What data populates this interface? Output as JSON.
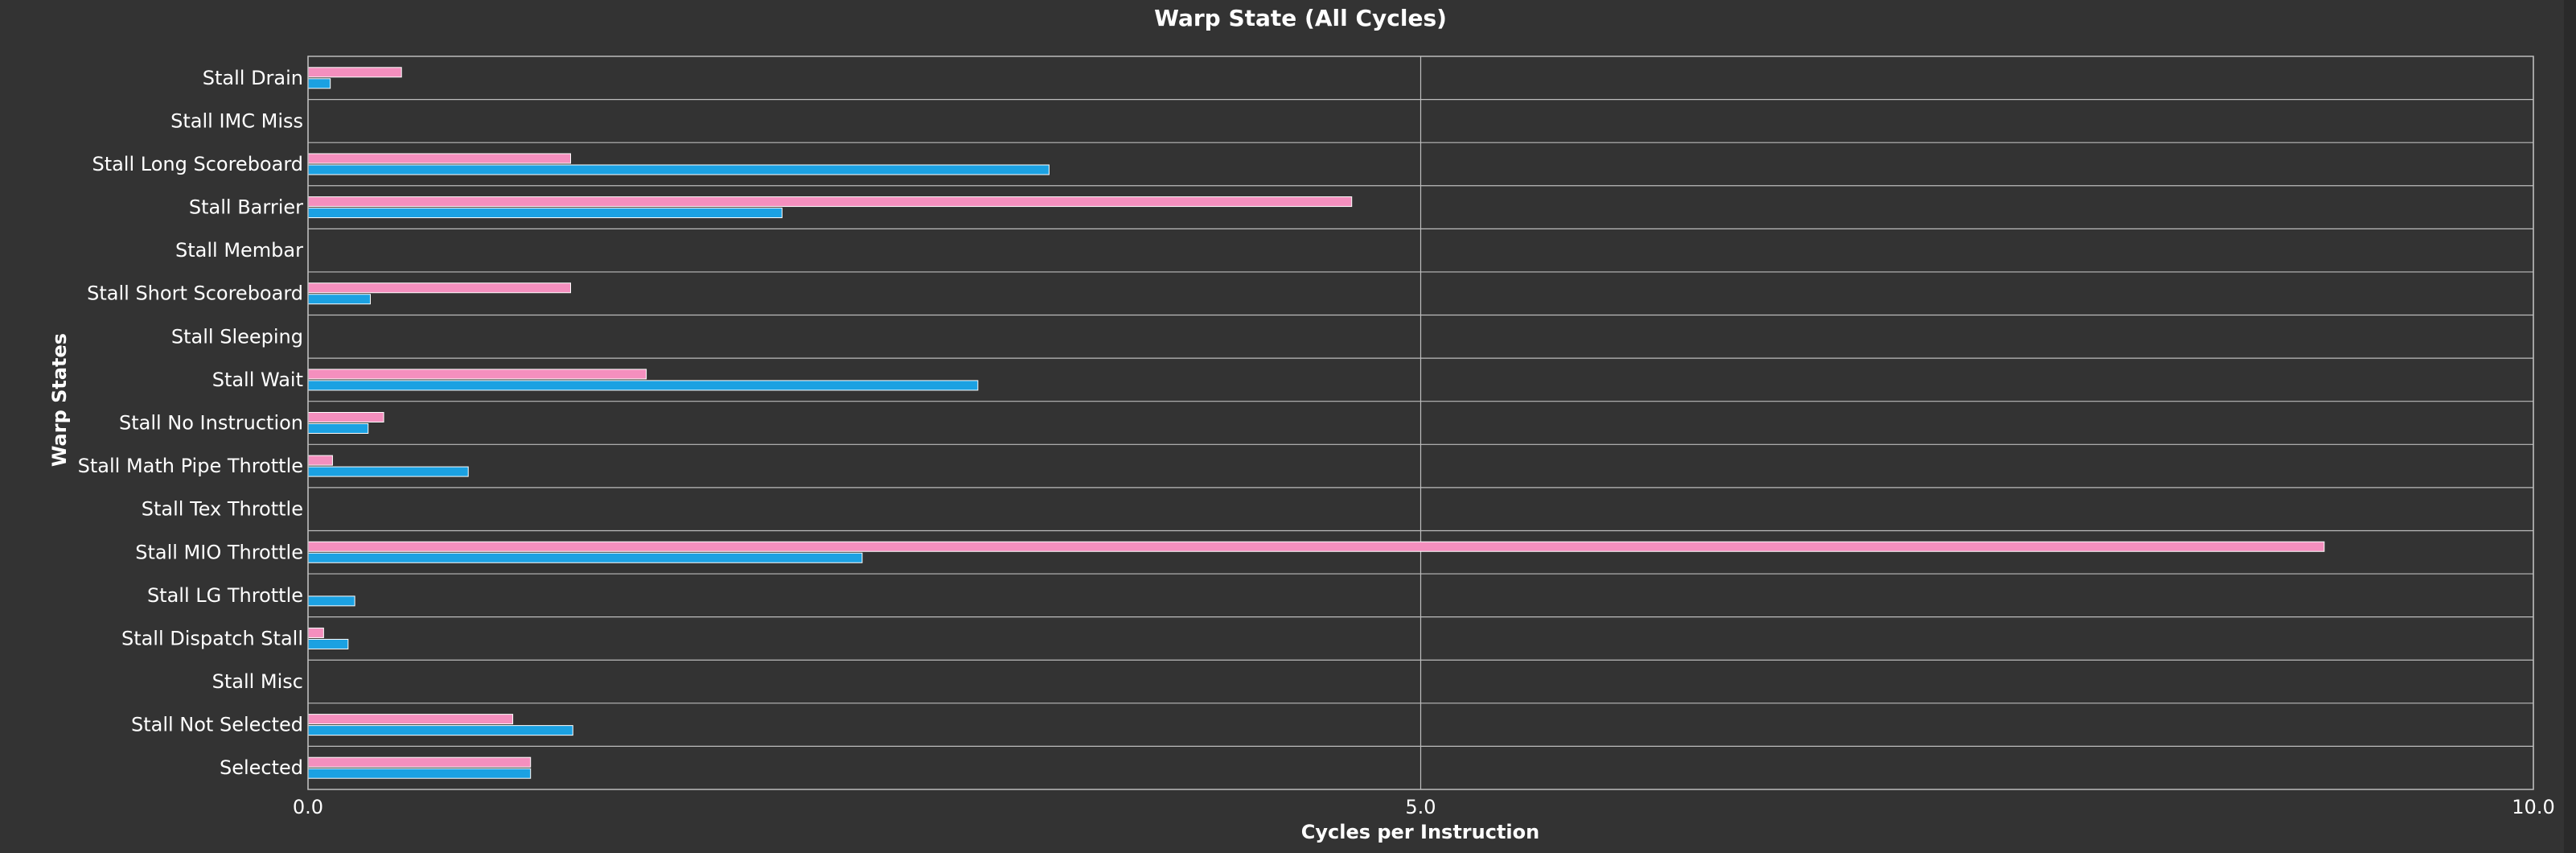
{
  "chart_data": {
    "type": "bar",
    "orientation": "horizontal",
    "title": "Warp State (All Cycles)",
    "xlabel": "Cycles per Instruction",
    "ylabel": "Warp States",
    "xlim": [
      0,
      10
    ],
    "xticks": [
      "0.0",
      "5.0",
      "10.0"
    ],
    "xtick_values": [
      0,
      5,
      10
    ],
    "grid": true,
    "legend": "none",
    "categories": [
      "Stall Drain",
      "Stall IMC Miss",
      "Stall Long Scoreboard",
      "Stall Barrier",
      "Stall Membar",
      "Stall Short Scoreboard",
      "Stall Sleeping",
      "Stall Wait",
      "Stall No Instruction",
      "Stall Math Pipe Throttle",
      "Stall Tex Throttle",
      "Stall MIO Throttle",
      "Stall LG Throttle",
      "Stall Dispatch Stall",
      "Stall Misc",
      "Stall Not Selected",
      "Selected"
    ],
    "series": [
      {
        "color": "#f48fbe",
        "values": [
          0.42,
          0.0,
          1.18,
          4.69,
          0.0,
          1.18,
          0.0,
          1.52,
          0.34,
          0.11,
          0.0,
          9.06,
          0.0,
          0.07,
          0.0,
          0.92,
          1.0
        ]
      },
      {
        "color": "#1ba1e2",
        "values": [
          0.1,
          0.0,
          3.33,
          2.13,
          0.0,
          0.28,
          0.0,
          3.01,
          0.27,
          0.72,
          0.0,
          2.49,
          0.21,
          0.18,
          0.0,
          1.19,
          1.0
        ]
      }
    ]
  }
}
